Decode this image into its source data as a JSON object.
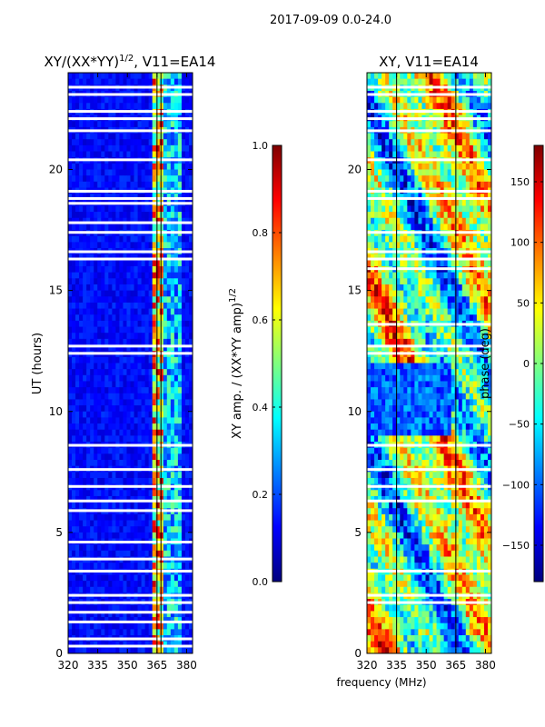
{
  "suptitle": "2017-09-09 0.0-24.0",
  "xlabel_shared": "frequency (MHz)",
  "chart_data": [
    {
      "type": "heatmap",
      "title": "XY/(XX*YY)",
      "title_sup": "1/2",
      "title_suffix": ", V11=EA14",
      "ylabel": "UT (hours)",
      "xlim": [
        320,
        383
      ],
      "ylim": [
        0,
        24
      ],
      "xticks": [
        "320",
        "335",
        "350",
        "365",
        "380"
      ],
      "xtick_values": [
        320,
        335,
        350,
        365,
        380
      ],
      "yticks": [
        "0",
        "5",
        "10",
        "15",
        "20"
      ],
      "ytick_values": [
        0,
        5,
        10,
        15,
        20
      ],
      "colorbar": {
        "label": "XY amp. / (XX*YY amp)",
        "label_sup": "1/2",
        "range": [
          0.0,
          1.0
        ],
        "ticks": [
          "0.0",
          "0.2",
          "0.4",
          "0.6",
          "0.8",
          "1.0"
        ],
        "tick_values": [
          0.0,
          0.2,
          0.4,
          0.6,
          0.8,
          1.0
        ],
        "colormap": "jet"
      },
      "vertical_lines_mhz": [
        365,
        367
      ],
      "flagged_hours": [
        0.3,
        0.6,
        1.3,
        1.7,
        2.1,
        2.4,
        3.4,
        3.9,
        4.6,
        5.9,
        6.3,
        6.9,
        7.6,
        8.6,
        12.4,
        12.7,
        16.3,
        16.6,
        17.4,
        17.8,
        18.6,
        18.8,
        19.1,
        20.4,
        21.6,
        22.1,
        22.4,
        23.1,
        23.4
      ],
      "high_amplitude_band_mhz": [
        363,
        369
      ]
    },
    {
      "type": "heatmap",
      "title": "XY, V11=EA14",
      "xlim": [
        320,
        383
      ],
      "ylim": [
        0,
        24
      ],
      "xticks": [
        "320",
        "335",
        "350",
        "365",
        "380"
      ],
      "xtick_values": [
        320,
        335,
        350,
        365,
        380
      ],
      "yticks": [
        "0",
        "5",
        "10",
        "15",
        "20"
      ],
      "ytick_values": [
        0,
        5,
        10,
        15,
        20
      ],
      "colorbar": {
        "label": "phase (deg)",
        "range": [
          -180,
          180
        ],
        "ticks": [
          "−150",
          "−100",
          "−50",
          "0",
          "50",
          "100",
          "150"
        ],
        "tick_values": [
          -150,
          -100,
          -50,
          0,
          50,
          100,
          150
        ],
        "colormap": "jet"
      },
      "vertical_lines_mhz": [
        335,
        365
      ],
      "flagged_hours": [
        2.1,
        2.4,
        3.4,
        6.3,
        6.9,
        7.6,
        8.6,
        12.4,
        12.7,
        13.6,
        15.9,
        16.3,
        16.6,
        17.4,
        18.8,
        19.1,
        20.4,
        21.6,
        22.1,
        22.4,
        23.1,
        23.4
      ]
    }
  ]
}
